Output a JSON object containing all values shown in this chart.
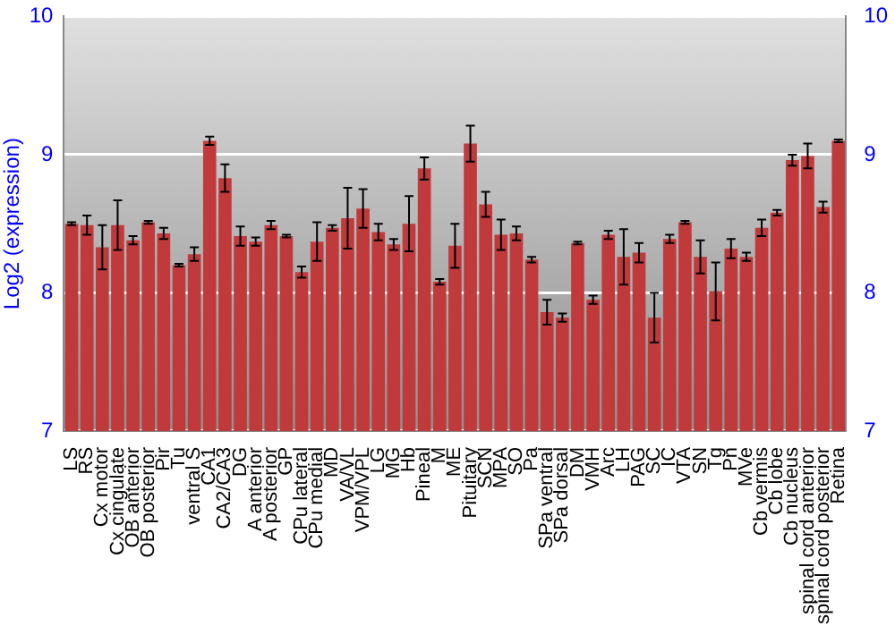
{
  "chart_data": {
    "type": "bar",
    "ylabel": "Log2 (expression)",
    "categories": [
      "LS",
      "RS",
      "Cx motor",
      "Cx cingulate",
      "OB anterior",
      "OB posterior",
      "Pir",
      "Tu",
      "ventral S",
      "CA1",
      "CA2/CA3",
      "DG",
      "A anterior",
      "A posterior",
      "GP",
      "CPu lateral",
      "CPu medial",
      "MD",
      "VA/VL",
      "VPM/VPL",
      "LG",
      "MG",
      "Hb",
      "Pineal",
      "M",
      "ME",
      "Pituitary",
      "SCN",
      "MPA",
      "SO",
      "Pa",
      "SPa ventral",
      "SPa dorsal",
      "DM",
      "VMH",
      "Arc",
      "LH",
      "PAG",
      "SC",
      "IC",
      "VTA",
      "SN",
      "Tg",
      "Pn",
      "MVe",
      "Cb vermis",
      "Cb lobe",
      "Cb nucleus",
      "spinal cord anterior",
      "spinal cord posterior",
      "Retina"
    ],
    "values": [
      8.5,
      8.49,
      8.33,
      8.49,
      8.38,
      8.51,
      8.43,
      8.2,
      8.28,
      9.1,
      8.83,
      8.41,
      8.37,
      8.49,
      8.41,
      8.15,
      8.37,
      8.47,
      8.54,
      8.61,
      8.44,
      8.35,
      8.5,
      8.9,
      8.08,
      8.34,
      9.08,
      8.64,
      8.42,
      8.43,
      8.24,
      7.86,
      7.82,
      8.36,
      7.95,
      8.42,
      8.26,
      8.29,
      7.82,
      8.39,
      8.51,
      8.26,
      8.01,
      8.32,
      8.26,
      8.47,
      8.58,
      8.96,
      8.99,
      8.62,
      9.1
    ],
    "errors": [
      0.01,
      0.07,
      0.16,
      0.18,
      0.03,
      0.01,
      0.04,
      0.01,
      0.05,
      0.03,
      0.1,
      0.07,
      0.03,
      0.03,
      0.01,
      0.04,
      0.14,
      0.02,
      0.22,
      0.14,
      0.06,
      0.04,
      0.2,
      0.08,
      0.02,
      0.16,
      0.13,
      0.09,
      0.11,
      0.05,
      0.02,
      0.09,
      0.03,
      0.01,
      0.03,
      0.03,
      0.2,
      0.07,
      0.18,
      0.03,
      0.01,
      0.12,
      0.21,
      0.07,
      0.03,
      0.06,
      0.02,
      0.04,
      0.09,
      0.04,
      0.01
    ],
    "color": "#c0393b",
    "ylim": [
      7,
      10
    ],
    "yticks": [
      7,
      8,
      9,
      10
    ],
    "y2lim": [
      7,
      10
    ],
    "y2ticks": [
      7,
      8,
      9,
      10
    ],
    "grid": "y",
    "legend": false
  }
}
